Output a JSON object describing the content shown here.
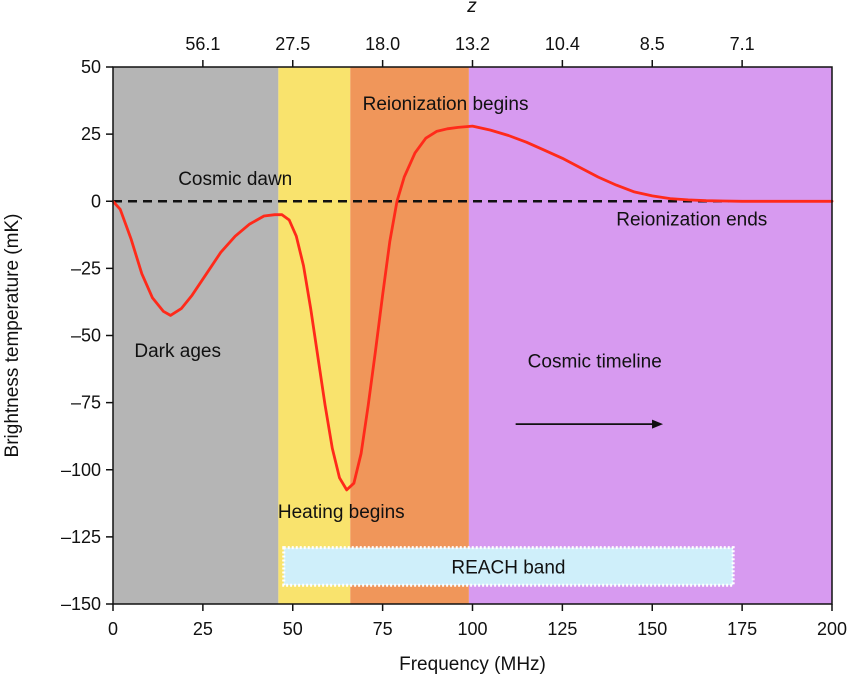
{
  "chart_data": {
    "type": "line",
    "xlabel": "Frequency (MHz)",
    "ylabel": "Brightness temperature (mK)",
    "top_axis_label": "z",
    "xlim": [
      0,
      200
    ],
    "ylim": [
      -150,
      50
    ],
    "x_ticks": [
      0,
      25,
      50,
      75,
      100,
      125,
      150,
      175,
      200
    ],
    "x_tick_labels": [
      "0",
      "25",
      "50",
      "75",
      "100",
      "125",
      "150",
      "175",
      "200"
    ],
    "y_ticks": [
      50,
      25,
      0,
      -25,
      -50,
      -75,
      -100,
      -125,
      -150
    ],
    "y_tick_labels": [
      "50",
      "25",
      "0",
      "–25",
      "–50",
      "–75",
      "–100",
      "–125",
      "–150"
    ],
    "top_ticks": [
      {
        "freq": 25,
        "label": "56.1"
      },
      {
        "freq": 50,
        "label": "27.5"
      },
      {
        "freq": 75,
        "label": "18.0"
      },
      {
        "freq": 100,
        "label": "13.2"
      },
      {
        "freq": 125,
        "label": "10.4"
      },
      {
        "freq": 150,
        "label": "8.5"
      },
      {
        "freq": 175,
        "label": "7.1"
      }
    ],
    "bands": [
      {
        "name": "dark-ages",
        "from": 0,
        "to": 46,
        "color": "#b5b5b5"
      },
      {
        "name": "cosmic-dawn",
        "from": 46,
        "to": 66,
        "color": "#f9e36d"
      },
      {
        "name": "heating",
        "from": 66,
        "to": 99,
        "color": "#f0965a"
      },
      {
        "name": "reionization",
        "from": 99,
        "to": 200,
        "color": "#d79af0"
      }
    ],
    "series": [
      {
        "color": "#ff2a1a",
        "x": [
          0,
          2,
          5,
          8,
          11,
          14,
          16,
          19,
          22,
          26,
          30,
          34,
          38,
          42,
          45,
          47,
          49,
          51,
          53,
          55,
          57,
          59,
          61,
          63,
          65,
          67,
          69,
          71,
          73,
          75,
          77,
          79,
          81,
          84,
          87,
          90,
          93,
          96,
          100,
          105,
          110,
          115,
          120,
          125,
          130,
          135,
          140,
          145,
          150,
          155,
          160,
          165,
          170,
          175,
          180,
          190,
          200
        ],
        "y": [
          0,
          -3,
          -14,
          -27,
          -36,
          -41,
          -42.5,
          -40,
          -35,
          -27,
          -19,
          -13,
          -8.5,
          -5.5,
          -5,
          -5,
          -7,
          -13,
          -24,
          -40,
          -58,
          -76,
          -92,
          -103,
          -107.5,
          -105,
          -94,
          -76,
          -56,
          -35,
          -15,
          0,
          9,
          18,
          23.5,
          26,
          27,
          27.5,
          28,
          26.5,
          24.5,
          22,
          19,
          16,
          12.5,
          9,
          6,
          3.5,
          2,
          1,
          0.5,
          0.2,
          0.1,
          0,
          0,
          0,
          0
        ]
      }
    ],
    "annotations": {
      "dark_ages": "Dark ages",
      "cosmic_dawn": "Cosmic dawn",
      "heating_begins": "Heating begins",
      "reionization_begins": "Reionization begins",
      "reionization_ends": "Reionization ends",
      "cosmic_timeline": "Cosmic timeline",
      "reach_band": "REACH band"
    },
    "reach_band": {
      "from": 47.5,
      "to": 172.5,
      "y_top": -129,
      "y_bottom": -143,
      "color": "#cfeffa"
    },
    "zero_line": {
      "y": 0,
      "style": "dashed"
    },
    "timeline_arrow": {
      "from": 112,
      "to": 153,
      "y": -83
    },
    "grid": false,
    "legend": "none"
  }
}
